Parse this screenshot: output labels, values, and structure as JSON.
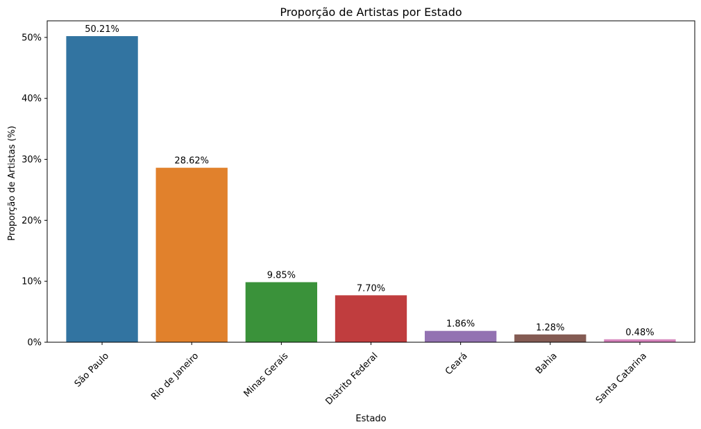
{
  "chart_data": {
    "type": "bar",
    "title": "Proporção de Artistas por Estado",
    "xlabel": "Estado",
    "ylabel": "Proporção de Artistas (%)",
    "categories": [
      "São Paulo",
      "Rio de Janeiro",
      "Minas Gerais",
      "Distrito Federal",
      "Ceará",
      "Bahia",
      "Santa Catarina"
    ],
    "values": [
      50.21,
      28.62,
      9.85,
      7.7,
      1.86,
      1.28,
      0.48
    ],
    "value_labels": [
      "50.21%",
      "28.62%",
      "9.85%",
      "7.70%",
      "1.86%",
      "1.28%",
      "0.48%"
    ],
    "colors": [
      "#3274a1",
      "#e1812c",
      "#3a923a",
      "#c03d3e",
      "#9372b2",
      "#845b53",
      "#d684bd"
    ],
    "yticks": [
      0,
      10,
      20,
      30,
      40,
      50
    ],
    "ytick_labels": [
      "0%",
      "10%",
      "20%",
      "30%",
      "40%",
      "50%"
    ],
    "ylim": [
      0,
      52.72
    ],
    "grid": false
  }
}
